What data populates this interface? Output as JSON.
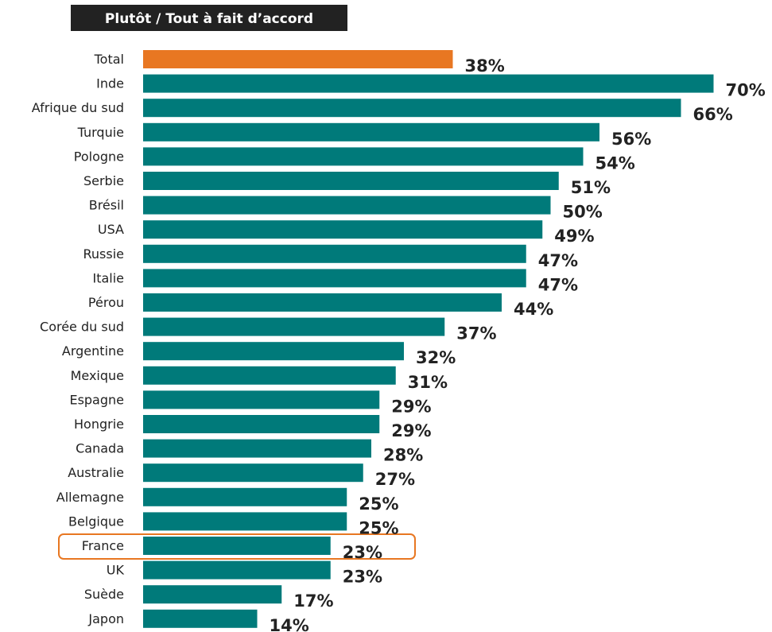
{
  "colors": {
    "default_bar": "#007A7A",
    "total_bar": "#E87722",
    "highlight_outline": "#E87722"
  },
  "chart_data": {
    "type": "bar",
    "orientation": "horizontal",
    "title": "Plutôt / Tout à fait d’accord",
    "categories": [
      "Total",
      "Inde",
      "Afrique du sud",
      "Turquie",
      "Pologne",
      "Serbie",
      "Brésil",
      "USA",
      "Russie",
      "Italie",
      "Pérou",
      "Corée du sud",
      "Argentine",
      "Mexique",
      "Espagne",
      "Hongrie",
      "Canada",
      "Australie",
      "Allemagne",
      "Belgique",
      "France",
      "UK",
      "Suède",
      "Japon"
    ],
    "values": [
      38,
      70,
      66,
      56,
      54,
      51,
      50,
      49,
      47,
      47,
      44,
      37,
      32,
      31,
      29,
      29,
      28,
      27,
      25,
      25,
      23,
      23,
      17,
      14
    ],
    "value_labels": [
      "38%",
      "70%",
      "66%",
      "56%",
      "54%",
      "51%",
      "50%",
      "49%",
      "47%",
      "47%",
      "44%",
      "37%",
      "32%",
      "31%",
      "29%",
      "29%",
      "28%",
      "27%",
      "25%",
      "25%",
      "23%",
      "23%",
      "17%",
      "14%"
    ],
    "unit": "%",
    "xlim": [
      0,
      70
    ],
    "grid": false,
    "legend": "none",
    "highlighted_total": "Total",
    "highlighted_category": "France"
  }
}
